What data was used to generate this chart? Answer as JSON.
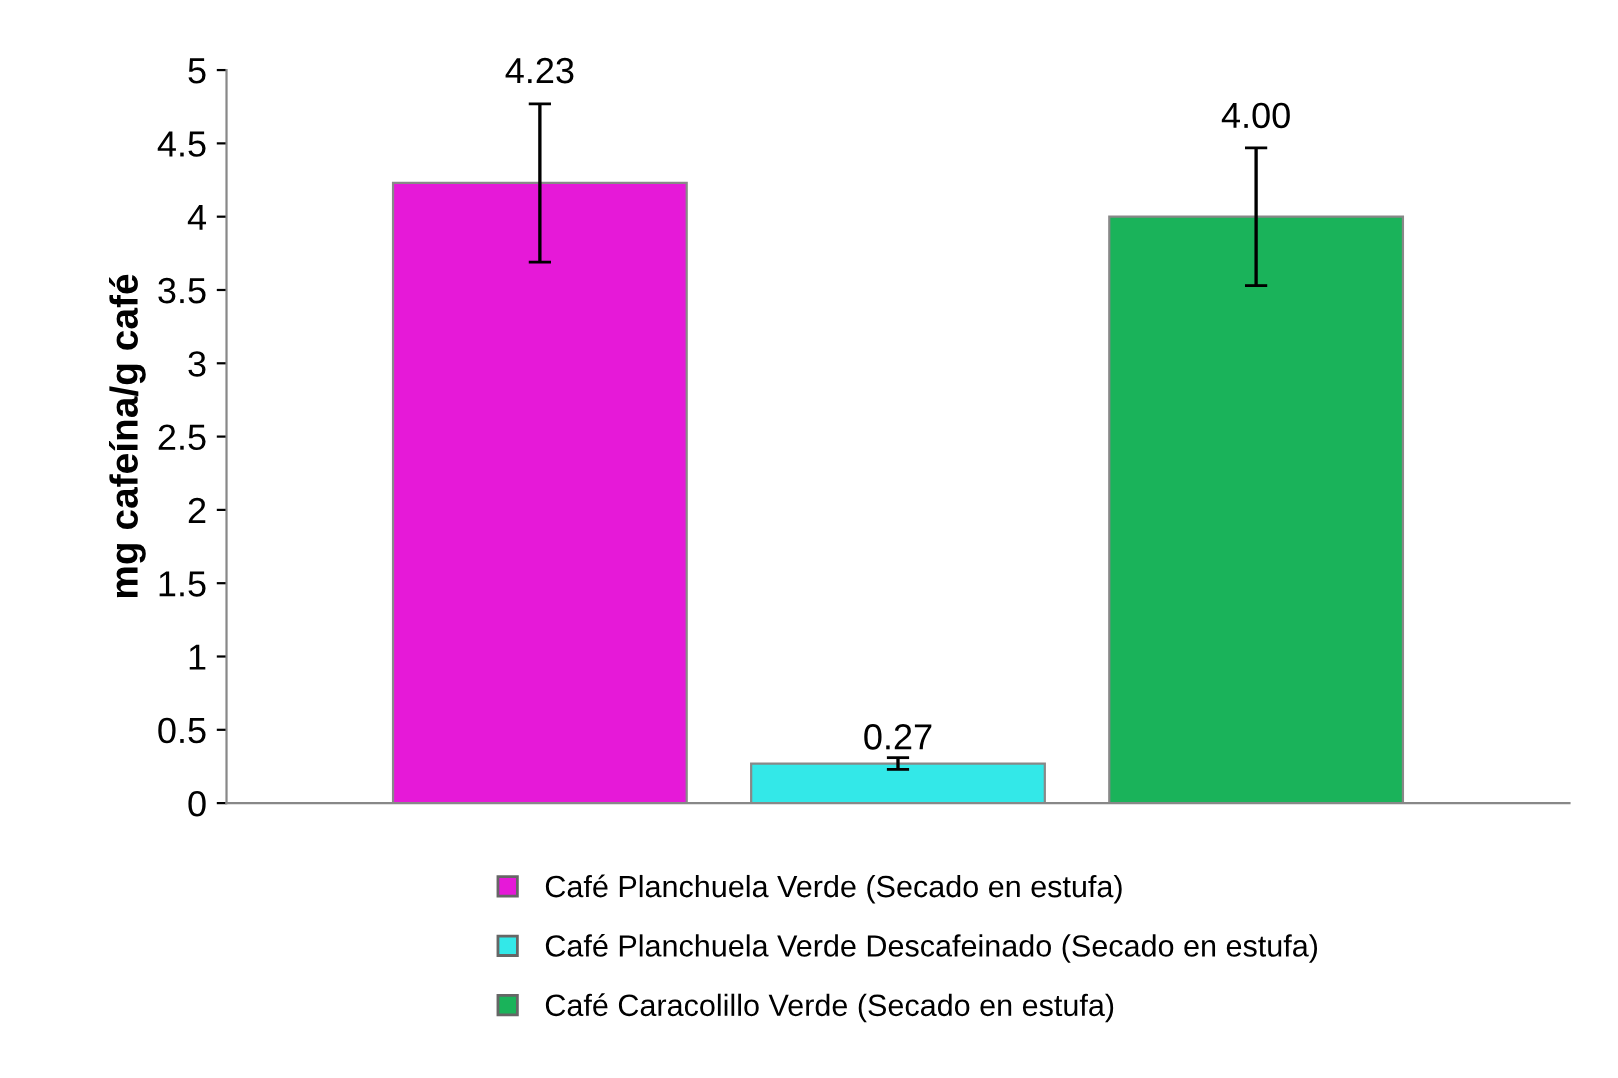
{
  "chart_data": {
    "type": "bar",
    "ylabel": "mg cafeína/g café",
    "categories": [
      null
    ],
    "series": [
      {
        "name": "Café Planchuela Verde (Secado en estufa)",
        "color": "#e619d8",
        "values": [
          4.23
        ],
        "errors": [
          0.54
        ],
        "value_labels": [
          "4.23"
        ]
      },
      {
        "name": "Café Planchuela Verde Descafeinado (Secado en estufa)",
        "color": "#33e8e8",
        "values": [
          0.27
        ],
        "errors": [
          0.04
        ],
        "value_labels": [
          "0.27"
        ]
      },
      {
        "name": "Café Caracolillo Verde (Secado en estufa)",
        "color": "#1ab35a",
        "values": [
          4.0
        ],
        "errors": [
          0.47
        ],
        "value_labels": [
          "4.00"
        ]
      }
    ],
    "ylim": [
      0,
      5
    ],
    "yticks": [
      0,
      0.5,
      1,
      1.5,
      2,
      2.5,
      3,
      3.5,
      4,
      4.5,
      5
    ],
    "grid": false,
    "legend": "bottom"
  }
}
